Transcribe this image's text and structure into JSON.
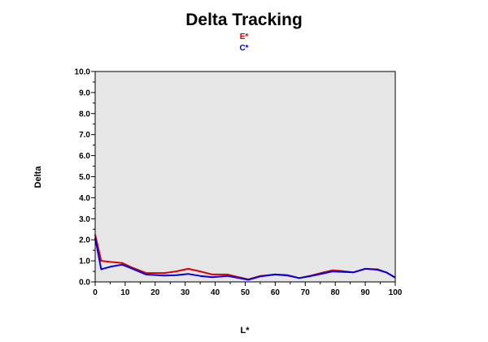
{
  "chart_data": {
    "type": "line",
    "title": "Delta Tracking",
    "xlabel": "L*",
    "ylabel": "Delta",
    "xlim": [
      0,
      100
    ],
    "ylim": [
      0,
      10
    ],
    "x_ticks": [
      "0",
      "10",
      "20",
      "30",
      "40",
      "50",
      "60",
      "70",
      "80",
      "90",
      "100"
    ],
    "y_ticks": [
      "0.0",
      "1.0",
      "2.0",
      "3.0",
      "4.0",
      "5.0",
      "6.0",
      "7.0",
      "8.0",
      "9.0",
      "10.0"
    ],
    "grid": false,
    "plot_background": "#e6e6e6",
    "legend_position": "top-center",
    "series": [
      {
        "name": "E*",
        "color": "#dd0000",
        "x": [
          0,
          2,
          5,
          9,
          12,
          17,
          23,
          27,
          31,
          35,
          39,
          44,
          48,
          51,
          55,
          60,
          64,
          68,
          72,
          76,
          79,
          82,
          86,
          90,
          94,
          97,
          100
        ],
        "y": [
          2.25,
          1.0,
          0.95,
          0.9,
          0.7,
          0.42,
          0.42,
          0.5,
          0.62,
          0.5,
          0.35,
          0.35,
          0.22,
          0.12,
          0.28,
          0.35,
          0.3,
          0.18,
          0.3,
          0.45,
          0.55,
          0.52,
          0.45,
          0.62,
          0.6,
          0.45,
          0.2
        ]
      },
      {
        "name": "C*",
        "color": "#0000dd",
        "x": [
          0,
          2,
          5,
          9,
          12,
          17,
          23,
          27,
          31,
          35,
          39,
          44,
          48,
          51,
          55,
          60,
          64,
          68,
          72,
          76,
          79,
          82,
          86,
          90,
          94,
          97,
          100
        ],
        "y": [
          2.1,
          0.6,
          0.72,
          0.82,
          0.65,
          0.35,
          0.3,
          0.32,
          0.38,
          0.28,
          0.22,
          0.28,
          0.18,
          0.1,
          0.26,
          0.35,
          0.32,
          0.18,
          0.28,
          0.4,
          0.5,
          0.48,
          0.45,
          0.62,
          0.58,
          0.45,
          0.2
        ]
      }
    ]
  }
}
